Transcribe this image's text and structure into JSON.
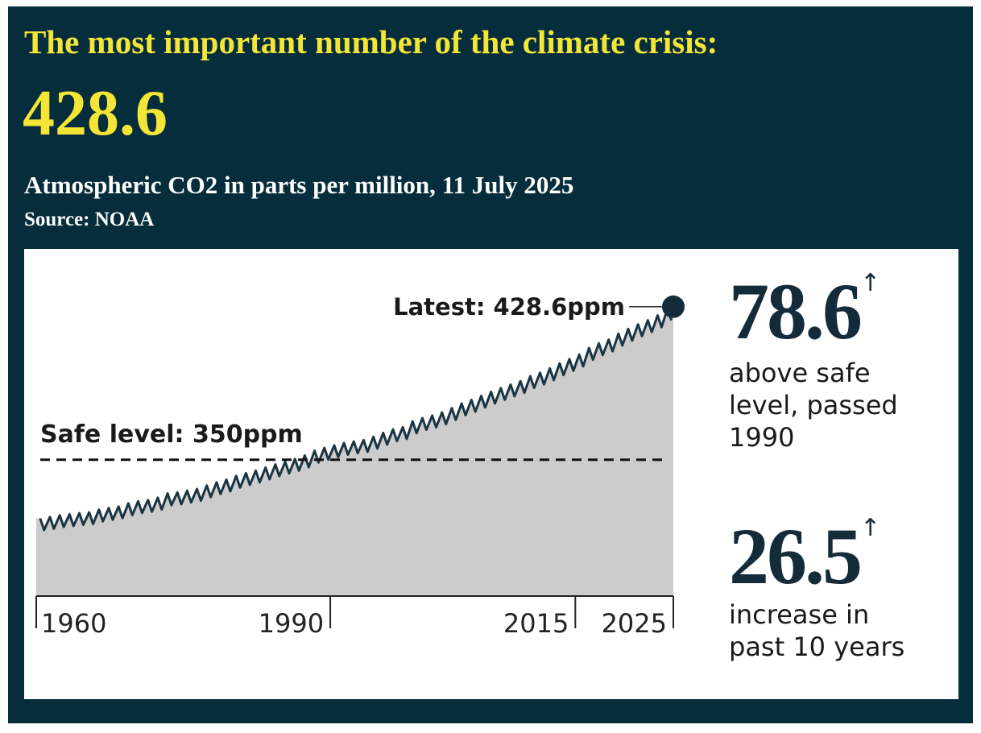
{
  "header": {
    "title": "The most important number of the climate crisis:",
    "headline": "428.6",
    "subtitle": "Atmospheric CO2 in parts per million, 11 July 2025",
    "source": "Source: NOAA"
  },
  "chart_data": {
    "type": "area",
    "x": [
      1960.4,
      1960.8,
      1961.4,
      1961.8,
      1962.4,
      1962.8,
      1963.4,
      1963.8,
      1964.4,
      1964.8,
      1965.4,
      1965.8,
      1966.4,
      1966.8,
      1967.4,
      1967.8,
      1968.4,
      1968.8,
      1969.4,
      1969.8,
      1970.4,
      1970.8,
      1971.4,
      1971.8,
      1972.4,
      1972.8,
      1973.4,
      1973.8,
      1974.4,
      1974.8,
      1975.4,
      1975.8,
      1976.4,
      1976.8,
      1977.4,
      1977.8,
      1978.4,
      1978.8,
      1979.4,
      1979.8,
      1980.4,
      1980.8,
      1981.4,
      1981.8,
      1982.4,
      1982.8,
      1983.4,
      1983.8,
      1984.4,
      1984.8,
      1985.4,
      1985.8,
      1986.4,
      1986.8,
      1987.4,
      1987.8,
      1988.4,
      1988.8,
      1989.4,
      1989.8,
      1990.4,
      1990.8,
      1991.4,
      1991.8,
      1992.4,
      1992.8,
      1993.4,
      1993.8,
      1994.4,
      1994.8,
      1995.4,
      1995.8,
      1996.4,
      1996.8,
      1997.4,
      1997.8,
      1998.4,
      1998.8,
      1999.4,
      1999.8,
      2000.4,
      2000.8,
      2001.4,
      2001.8,
      2002.4,
      2002.8,
      2003.4,
      2003.8,
      2004.4,
      2004.8,
      2005.4,
      2005.8,
      2006.4,
      2006.8,
      2007.4,
      2007.8,
      2008.4,
      2008.8,
      2009.4,
      2009.8,
      2010.4,
      2010.8,
      2011.4,
      2011.8,
      2012.4,
      2012.8,
      2013.4,
      2013.8,
      2014.4,
      2014.8,
      2015.4,
      2015.8,
      2016.4,
      2016.8,
      2017.4,
      2017.8,
      2018.4,
      2018.8,
      2019.4,
      2019.8,
      2020.4,
      2020.8,
      2021.4,
      2021.8,
      2022.4,
      2022.8,
      2023.4,
      2023.8,
      2024.4,
      2024.8
    ],
    "values": [
      319.9,
      313.9,
      320.6,
      314.6,
      321.5,
      315.5,
      322.0,
      316.0,
      322.6,
      316.6,
      323.0,
      317.0,
      324.4,
      318.4,
      325.2,
      319.2,
      326.0,
      320.0,
      327.6,
      321.6,
      328.7,
      322.7,
      329.3,
      323.3,
      330.5,
      324.5,
      332.7,
      326.7,
      333.2,
      327.2,
      334.1,
      328.1,
      335.0,
      329.0,
      336.8,
      330.8,
      338.4,
      332.4,
      339.8,
      333.8,
      341.7,
      335.7,
      343.1,
      337.1,
      344.4,
      338.4,
      346.0,
      340.0,
      347.6,
      341.6,
      349.0,
      343.0,
      350.4,
      344.4,
      352.2,
      346.2,
      354.6,
      348.6,
      356.1,
      350.1,
      357.4,
      351.4,
      358.6,
      352.6,
      359.4,
      353.4,
      360.1,
      354.1,
      361.8,
      355.8,
      363.8,
      357.8,
      365.6,
      359.6,
      366.7,
      360.7,
      369.7,
      363.7,
      371.4,
      365.4,
      372.7,
      366.7,
      374.3,
      368.3,
      376.5,
      370.5,
      378.9,
      372.9,
      380.7,
      374.7,
      382.8,
      376.8,
      384.9,
      378.9,
      386.8,
      380.8,
      388.6,
      382.6,
      390.4,
      384.4,
      392.9,
      386.9,
      394.7,
      388.7,
      396.9,
      390.9,
      399.5,
      393.5,
      401.7,
      395.7,
      404.0,
      398.0,
      407.4,
      401.4,
      409.8,
      403.8,
      411.7,
      405.7,
      414.7,
      408.7,
      417.2,
      411.2,
      419.5,
      413.5,
      421.6,
      415.6,
      424.1,
      418.1,
      427.6,
      421.6
    ],
    "color": "#1b3442",
    "fill": "#cccccc",
    "xlim": [
      1960,
      2025
    ],
    "xticks": [
      1960,
      1990,
      2015,
      2025
    ],
    "ylim": [
      280,
      430
    ],
    "reference_line": {
      "value": 350,
      "label": "Safe level: 350ppm"
    },
    "latest": {
      "x": 2025,
      "value": 428.6,
      "label": "Latest: 428.6ppm"
    }
  },
  "stats": [
    {
      "value": "78.6",
      "arrow": "↑",
      "label": "above safe level, passed 1990"
    },
    {
      "value": "26.5",
      "arrow": "↑",
      "label": "increase in past 10 years"
    }
  ]
}
